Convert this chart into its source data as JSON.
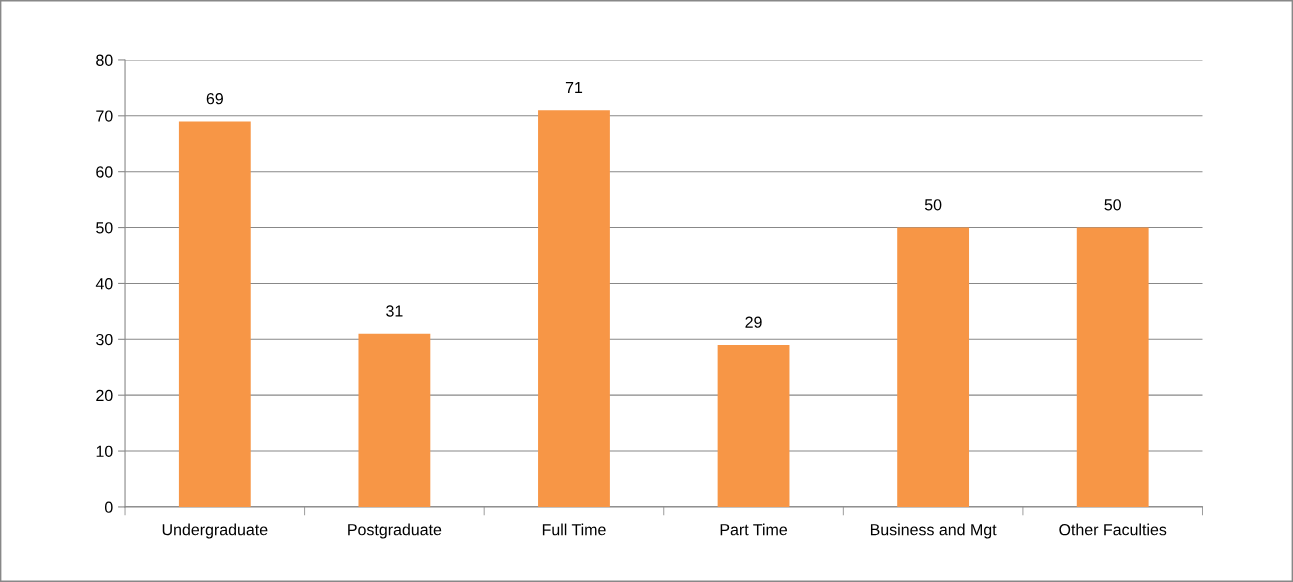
{
  "chart_data": {
    "type": "bar",
    "categories": [
      "Undergraduate",
      "Postgraduate",
      "Full Time",
      "Part Time",
      "Business and Mgt",
      "Other Faculties"
    ],
    "values": [
      69,
      31,
      71,
      29,
      50,
      50
    ],
    "color": "#f79646",
    "ylim": [
      0,
      80
    ],
    "yticks": [
      0,
      10,
      20,
      30,
      40,
      50,
      60,
      70,
      80
    ],
    "grid": "y",
    "data_labels": true
  }
}
